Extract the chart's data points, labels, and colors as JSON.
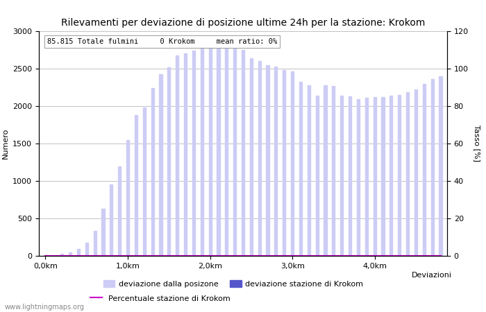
{
  "title": "Rilevamenti per deviazione di posizione ultime 24h per la stazione: Krokom",
  "xlabel": "Deviazioni",
  "ylabel_left": "Numero",
  "ylabel_right": "Tasso [%]",
  "annotation": "85.815 Totale fulmini     0 Krokom     mean ratio: 0%",
  "watermark": "www.lightningmaps.org",
  "ylim_left": [
    0,
    3000
  ],
  "ylim_right": [
    0,
    120
  ],
  "yticks_left": [
    0,
    500,
    1000,
    1500,
    2000,
    2500,
    3000
  ],
  "yticks_right": [
    0,
    20,
    40,
    60,
    80,
    100,
    120
  ],
  "xtick_labels": [
    "0,0km",
    "1,0km",
    "2,0km",
    "3,0km",
    "4,0km"
  ],
  "xtick_positions": [
    0,
    10,
    20,
    30,
    40
  ],
  "bar_color_light": "#ccccf5",
  "bar_color_dark": "#5555cc",
  "line_color": "#cc00cc",
  "grid_color": "#aaaaaa",
  "bar_values": [
    3,
    8,
    25,
    50,
    90,
    180,
    330,
    630,
    950,
    1190,
    1550,
    1880,
    1980,
    2240,
    2430,
    2520,
    2680,
    2700,
    2740,
    2780,
    2890,
    2900,
    2850,
    2810,
    2750,
    2640,
    2600,
    2550,
    2530,
    2480,
    2460,
    2320,
    2280,
    2140,
    2280,
    2270,
    2135,
    2130,
    2090,
    2110,
    2125,
    2125,
    2135,
    2150,
    2185,
    2225,
    2300,
    2365,
    2395
  ],
  "krokom_values": [
    0,
    0,
    0,
    0,
    0,
    0,
    0,
    0,
    0,
    0,
    0,
    0,
    0,
    0,
    0,
    0,
    0,
    0,
    0,
    0,
    0,
    0,
    0,
    0,
    0,
    0,
    0,
    0,
    0,
    0,
    0,
    0,
    0,
    0,
    0,
    0,
    0,
    0,
    0,
    0,
    0,
    0,
    0,
    0,
    0,
    0,
    0,
    0,
    0
  ],
  "ratio_values": [
    0,
    0,
    0,
    0,
    0,
    0,
    0,
    0,
    0,
    0,
    0,
    0,
    0,
    0,
    0,
    0,
    0,
    0,
    0,
    0,
    0,
    0,
    0,
    0,
    0,
    0,
    0,
    0,
    0,
    0,
    0,
    0,
    0,
    0,
    0,
    0,
    0,
    0,
    0,
    0,
    0,
    0,
    0,
    0,
    0,
    0,
    0,
    0,
    0
  ],
  "legend_labels": [
    "deviazione dalla posizone",
    "deviazione stazione di Krokom",
    "Percentuale stazione di Krokom"
  ],
  "title_fontsize": 10,
  "label_fontsize": 8,
  "tick_fontsize": 8,
  "annotation_fontsize": 7.5
}
